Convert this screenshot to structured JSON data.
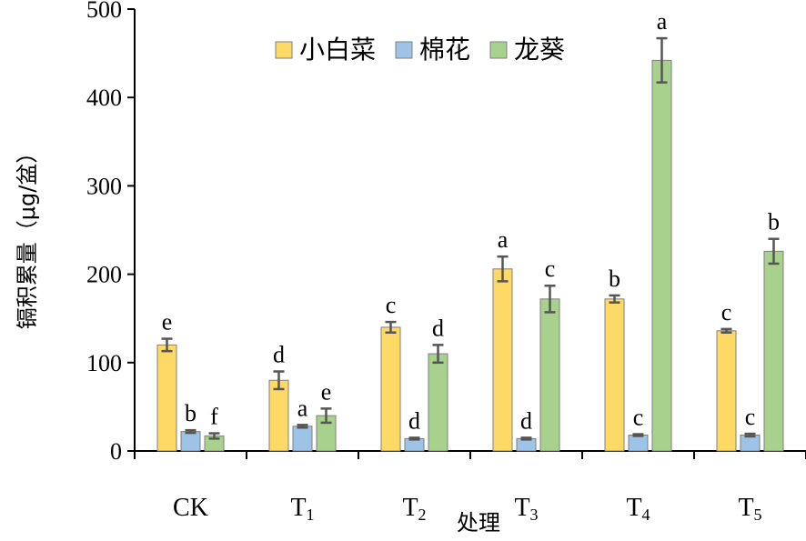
{
  "chart_data": {
    "type": "bar",
    "title": "",
    "xlabel": "处理",
    "ylabel": "镉积累量（μg/盆）",
    "ylim": [
      0,
      500
    ],
    "yticks": [
      0,
      100,
      200,
      300,
      400,
      500
    ],
    "categories": [
      {
        "main": "CK",
        "sub": ""
      },
      {
        "main": "T",
        "sub": "1"
      },
      {
        "main": "T",
        "sub": "2"
      },
      {
        "main": "T",
        "sub": "3"
      },
      {
        "main": "T",
        "sub": "4"
      },
      {
        "main": "T",
        "sub": "5"
      }
    ],
    "legend_position": "top-center",
    "grid": false,
    "series": [
      {
        "name": "小白菜",
        "color": "#FFD966",
        "values": [
          120,
          80,
          140,
          206,
          172,
          136
        ],
        "errors": [
          7,
          10,
          6,
          14,
          4,
          2
        ],
        "labels": [
          "e",
          "d",
          "c",
          "a",
          "b",
          "c"
        ]
      },
      {
        "name": "棉花",
        "color": "#9DC3E6",
        "values": [
          22,
          28,
          14,
          14,
          18,
          18
        ],
        "errors": [
          1.5,
          1.5,
          1,
          1,
          1,
          1.5
        ],
        "labels": [
          "b",
          "a",
          "d",
          "d",
          "c",
          "c"
        ]
      },
      {
        "name": "龙葵",
        "color": "#A9D18E",
        "values": [
          17,
          40,
          110,
          172,
          442,
          226
        ],
        "errors": [
          3,
          8,
          10,
          15,
          25,
          14
        ],
        "labels": [
          "f",
          "e",
          "d",
          "c",
          "a",
          "b"
        ]
      }
    ]
  }
}
